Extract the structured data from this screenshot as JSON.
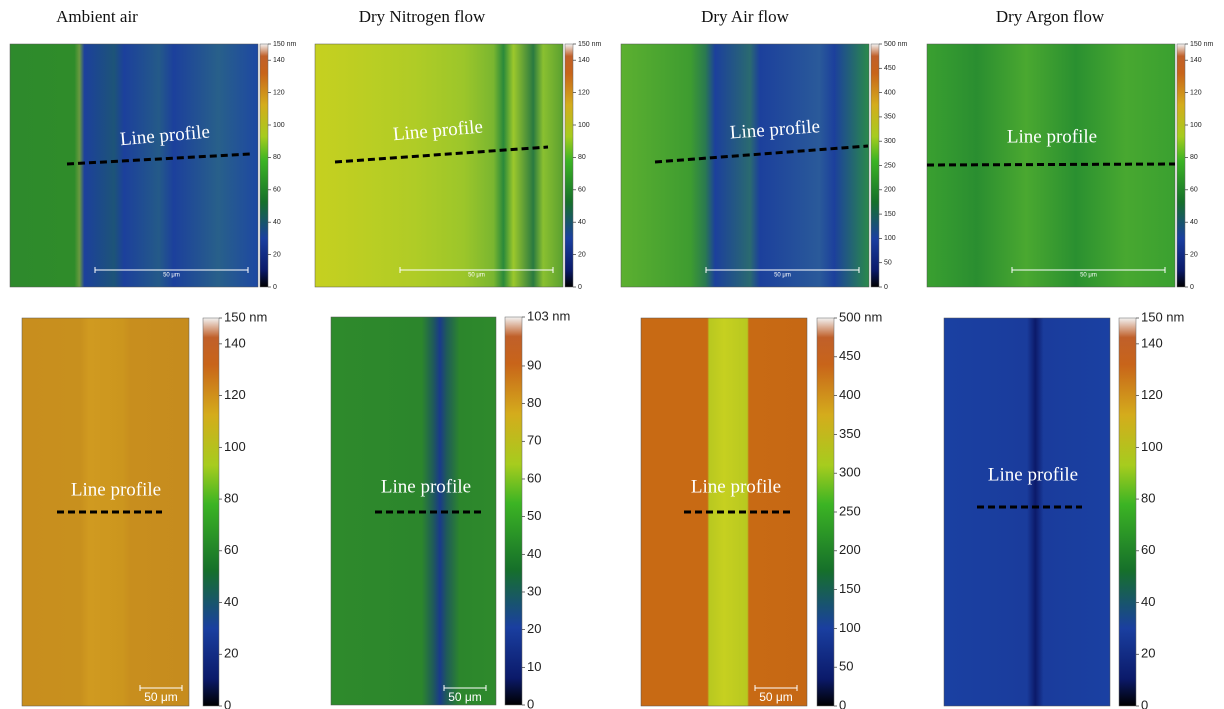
{
  "panels": [
    {
      "title": "Ambient air",
      "top": {
        "annotation": "Line profile",
        "scale_bar": "50 μm",
        "colorbar": {
          "range": [
            0,
            150
          ],
          "ticks": [
            0,
            20,
            40,
            60,
            80,
            100,
            120,
            140,
            {
              "value": 150,
              "label": "150 nm"
            }
          ]
        }
      },
      "bottom": {
        "annotation": "Line profile",
        "scale_bar": "50 μm",
        "colorbar": {
          "range": [
            0,
            150
          ],
          "ticks": [
            0,
            20,
            40,
            60,
            80,
            100,
            120,
            140,
            {
              "value": 150,
              "label": "150 nm"
            }
          ]
        }
      }
    },
    {
      "title": "Dry Nitrogen flow",
      "top": {
        "annotation": "Line profile",
        "scale_bar": "50 μm",
        "colorbar": {
          "range": [
            0,
            150
          ],
          "ticks": [
            0,
            20,
            40,
            60,
            80,
            100,
            120,
            140,
            {
              "value": 150,
              "label": "150 nm"
            }
          ]
        }
      },
      "bottom": {
        "annotation": "Line profile",
        "scale_bar": "50 μm",
        "colorbar": {
          "range": [
            0,
            103
          ],
          "ticks": [
            0,
            10,
            20,
            30,
            40,
            50,
            60,
            70,
            80,
            90,
            {
              "value": 103,
              "label": "103 nm"
            }
          ]
        }
      }
    },
    {
      "title": "Dry Air flow",
      "top": {
        "annotation": "Line profile",
        "scale_bar": "50 μm",
        "colorbar": {
          "range": [
            0,
            500
          ],
          "ticks": [
            0,
            50,
            100,
            150,
            200,
            250,
            300,
            350,
            400,
            450,
            {
              "value": 500,
              "label": "500 nm"
            }
          ]
        }
      },
      "bottom": {
        "annotation": "Line profile",
        "scale_bar": "50 μm",
        "colorbar": {
          "range": [
            0,
            500
          ],
          "ticks": [
            0,
            50,
            100,
            150,
            200,
            250,
            300,
            350,
            400,
            450,
            {
              "value": 500,
              "label": "500 nm"
            }
          ]
        }
      }
    },
    {
      "title": "Dry Argon flow",
      "top": {
        "annotation": "Line profile",
        "scale_bar": "50 μm",
        "colorbar": {
          "range": [
            0,
            150
          ],
          "ticks": [
            0,
            20,
            40,
            60,
            80,
            100,
            120,
            140,
            {
              "value": 150,
              "label": "150 nm"
            }
          ]
        }
      },
      "bottom": {
        "annotation": "Line profile",
        "scale_bar": "50 μm",
        "colorbar": {
          "range": [
            0,
            150
          ],
          "ticks": [
            0,
            20,
            40,
            60,
            80,
            100,
            120,
            140,
            {
              "value": 150,
              "label": "150 nm"
            }
          ]
        }
      }
    }
  ]
}
